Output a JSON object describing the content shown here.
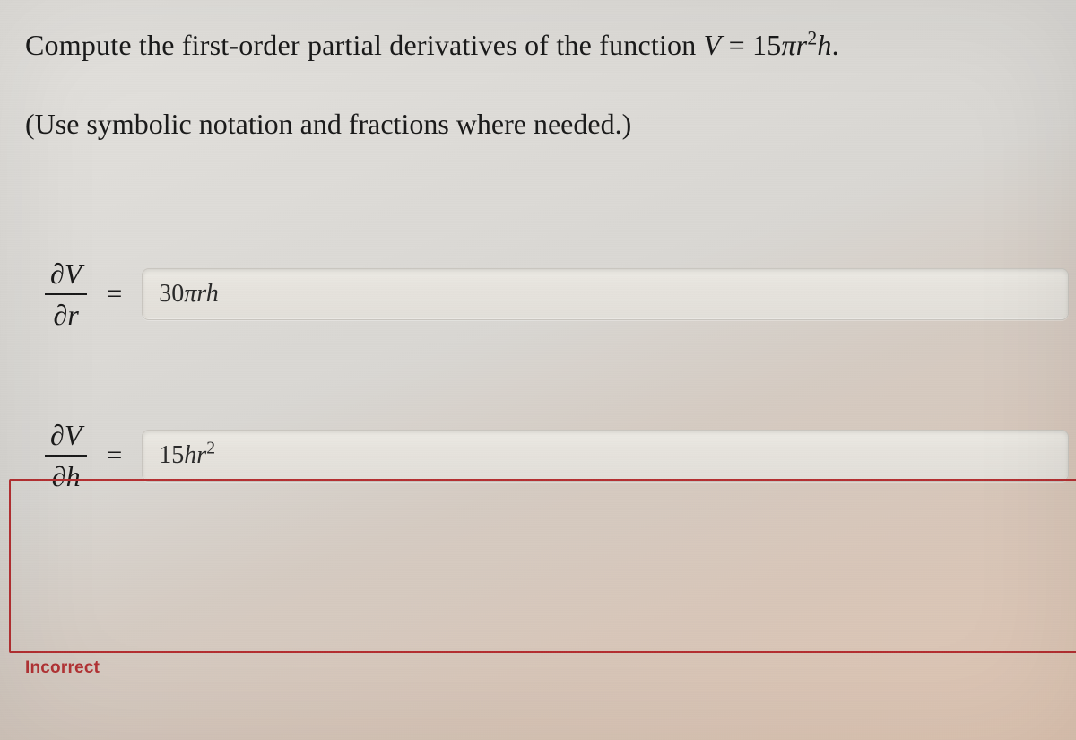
{
  "question": {
    "prompt_pre": "Compute the first-order partial derivatives of the function ",
    "formula_html": "<span class=\"func-italic\">V</span> = 15<span class=\"func-italic\">πr</span><sup style=\"font-size:0.68em;\">2</sup><span class=\"func-italic\">h</span>.",
    "instruction": "(Use symbolic notation and fractions where needed.)"
  },
  "rows": {
    "r1": {
      "numerator": "∂V",
      "denominator": "∂r",
      "equals": "=",
      "answer_html": "<span class=\"up\">30</span>πrh"
    },
    "r2": {
      "numerator": "∂V",
      "denominator": "∂h",
      "equals": "=",
      "answer_html": "<span class=\"up\">15</span>hr<sup>2</sup>"
    }
  },
  "feedback": {
    "incorrect_label": "Incorrect"
  },
  "style": {
    "incorrect_border_color": "#b42f31",
    "incorrect_text_color": "#b23234",
    "field_bg_top": "#eceae4",
    "field_bg_bottom": "#e2dfd9",
    "field_border": "#c9c6bf"
  }
}
